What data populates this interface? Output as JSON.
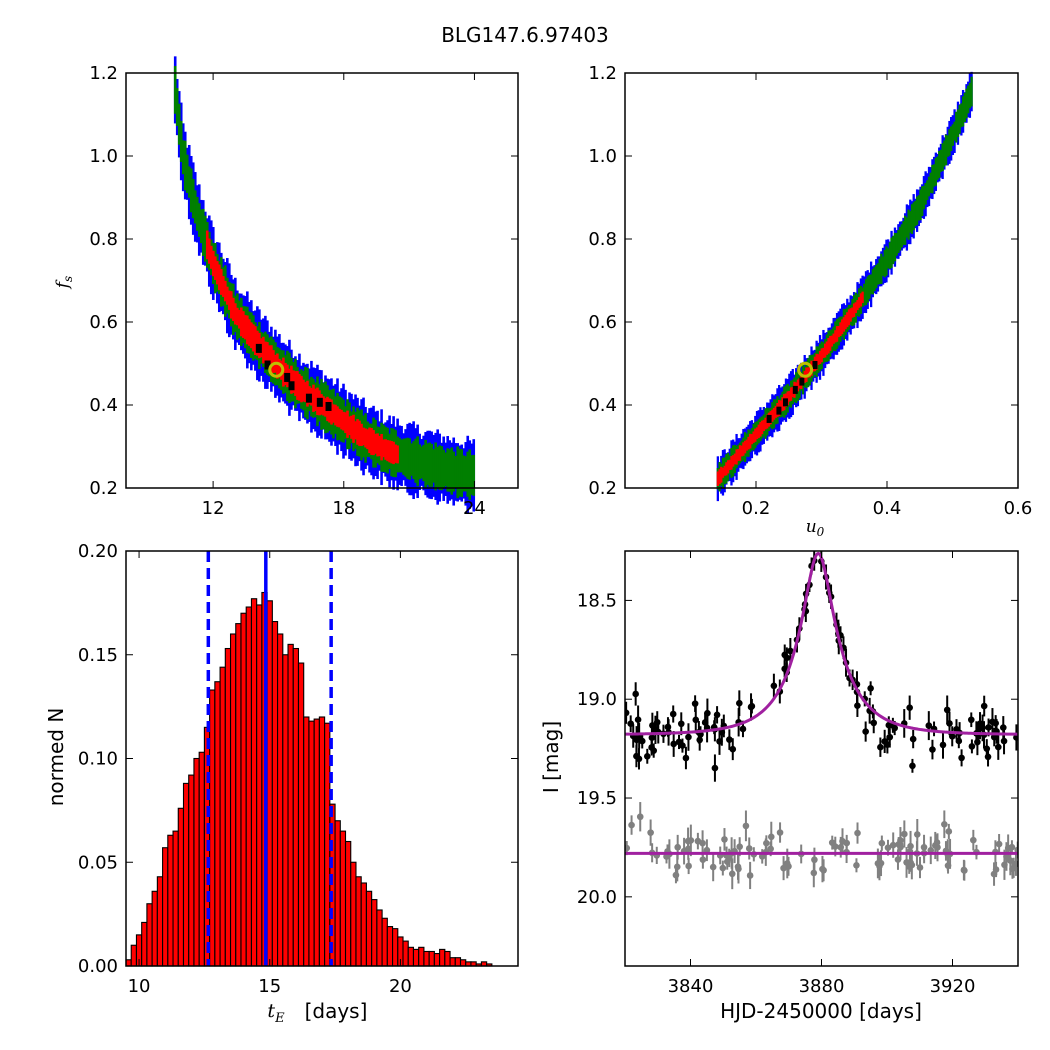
{
  "figure": {
    "title": "BLG147.6.97403"
  },
  "colors": {
    "blue": "#0000ff",
    "green": "#007f00",
    "red": "#ff0000",
    "black": "#000000",
    "gold": "#bfbf00",
    "purple": "#a020a0",
    "gray": "#808080"
  },
  "chart_data": [
    {
      "type": "heatmap",
      "name": "fs-vs-tE",
      "xlim": [
        8,
        26
      ],
      "ylim": [
        0.2,
        1.2
      ],
      "xticks": [
        12,
        18,
        24
      ],
      "yticks": [
        0.2,
        0.4,
        0.6,
        0.8,
        1.0,
        1.2
      ],
      "xtick_labels": [
        "12",
        "18",
        "24"
      ],
      "ytick_labels": [
        "0.2",
        "0.4",
        "0.6",
        "0.8",
        "1.0",
        "1.2"
      ],
      "ylabel": "f_s",
      "band_centerline": [
        [
          10.2,
          1.18
        ],
        [
          10.6,
          1.0
        ],
        [
          11.2,
          0.87
        ],
        [
          12,
          0.74
        ],
        [
          13,
          0.62
        ],
        [
          14,
          0.55
        ],
        [
          15,
          0.49
        ],
        [
          16,
          0.44
        ],
        [
          17,
          0.4
        ],
        [
          18,
          0.36
        ],
        [
          19,
          0.32
        ],
        [
          20,
          0.29
        ],
        [
          21,
          0.27
        ],
        [
          22,
          0.255
        ],
        [
          23,
          0.24
        ],
        [
          24,
          0.23
        ]
      ],
      "best_fit": [
        14.9,
        0.485
      ]
    },
    {
      "type": "heatmap",
      "name": "fs-vs-u0",
      "xlim": [
        0.0,
        0.6
      ],
      "ylim": [
        0.2,
        1.2
      ],
      "xticks": [
        0.2,
        0.4,
        0.6
      ],
      "yticks": [
        0.2,
        0.4,
        0.6,
        0.8,
        1.0,
        1.2
      ],
      "xtick_labels": [
        "0.2",
        "0.4",
        "0.6"
      ],
      "ytick_labels": [
        "0.2",
        "0.4",
        "0.6",
        "0.8",
        "1.0",
        "1.2"
      ],
      "xlabel": "u_0",
      "band_centerline": [
        [
          0.14,
          0.22
        ],
        [
          0.2,
          0.33
        ],
        [
          0.25,
          0.42
        ],
        [
          0.3,
          0.52
        ],
        [
          0.35,
          0.63
        ],
        [
          0.4,
          0.75
        ],
        [
          0.45,
          0.88
        ],
        [
          0.5,
          1.05
        ],
        [
          0.53,
          1.16
        ]
      ],
      "best_fit": [
        0.275,
        0.485
      ]
    },
    {
      "type": "bar",
      "name": "tE-histogram",
      "xlim": [
        9.5,
        24.5
      ],
      "ylim": [
        0.0,
        0.2
      ],
      "xticks": [
        10,
        15,
        20
      ],
      "yticks": [
        0.0,
        0.05,
        0.1,
        0.15,
        0.2
      ],
      "xtick_labels": [
        "10",
        "15",
        "20"
      ],
      "ytick_labels": [
        "0.00",
        "0.05",
        "0.10",
        "0.15",
        "0.20"
      ],
      "xlabel": "[days]",
      "ylabel": "normed N",
      "bin_start": 9.5,
      "bin_width": 0.2,
      "values": [
        0.003,
        0.01,
        0.015,
        0.021,
        0.03,
        0.036,
        0.043,
        0.057,
        0.063,
        0.065,
        0.076,
        0.088,
        0.092,
        0.1,
        0.103,
        0.115,
        0.133,
        0.137,
        0.144,
        0.153,
        0.16,
        0.165,
        0.17,
        0.173,
        0.177,
        0.174,
        0.18,
        0.176,
        0.166,
        0.16,
        0.15,
        0.155,
        0.153,
        0.146,
        0.12,
        0.118,
        0.119,
        0.12,
        0.117,
        0.078,
        0.07,
        0.065,
        0.06,
        0.05,
        0.043,
        0.04,
        0.036,
        0.032,
        0.027,
        0.023,
        0.019,
        0.018,
        0.014,
        0.012,
        0.009,
        0.008,
        0.009,
        0.007,
        0.007,
        0.006,
        0.008,
        0.007,
        0.004,
        0.004,
        0.003,
        0.002,
        0.002,
        0.001,
        0.002,
        0.001
      ],
      "median": 14.85,
      "lower": 12.65,
      "upper": 17.35
    },
    {
      "type": "scatter",
      "name": "light-curve",
      "xlim": [
        3820,
        3940
      ],
      "ylim": [
        20.35,
        18.25
      ],
      "xticks": [
        3840,
        3880,
        3920
      ],
      "yticks": [
        18.5,
        19.0,
        19.5,
        20.0
      ],
      "xtick_labels": [
        "3840",
        "3880",
        "3920"
      ],
      "ytick_labels": [
        "18.5",
        "19.0",
        "19.5",
        "20.0"
      ],
      "xlabel": "HJD-2450000 [days]",
      "ylabel": "I [mag]",
      "model": {
        "t0": 3879.0,
        "tE": 14.85,
        "u0": 0.275,
        "fs": 0.485,
        "baseline": 19.18
      },
      "offset_baseline": 19.78,
      "scatter_rms": 0.07
    }
  ]
}
